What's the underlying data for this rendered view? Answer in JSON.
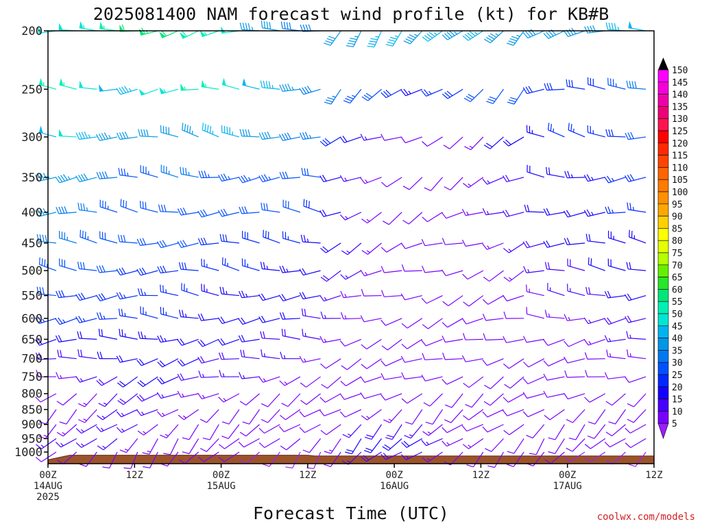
{
  "chart_data": {
    "type": "wind-barb",
    "title": "2025081400 NAM forecast wind profile (kt) for KB#B",
    "xlabel": "Forecast Time (UTC)",
    "ylabel": "",
    "y_ticks": [
      "200",
      "250",
      "300",
      "350",
      "400",
      "450",
      "500",
      "550",
      "600",
      "650",
      "700",
      "750",
      "800",
      "850",
      "900",
      "950",
      "1000"
    ],
    "x_ticks": [
      {
        "lines": [
          "00Z",
          "14AUG",
          "2025"
        ],
        "hour": 0
      },
      {
        "lines": [
          "12Z"
        ],
        "hour": 12
      },
      {
        "lines": [
          "00Z",
          "15AUG"
        ],
        "hour": 24
      },
      {
        "lines": [
          "12Z"
        ],
        "hour": 36
      },
      {
        "lines": [
          "00Z",
          "16AUG"
        ],
        "hour": 48
      },
      {
        "lines": [
          "12Z"
        ],
        "hour": 60
      },
      {
        "lines": [
          "00Z",
          "17AUG"
        ],
        "hour": 72
      },
      {
        "lines": [
          "12Z"
        ],
        "hour": 84
      }
    ],
    "xlim_hours": [
      0,
      84
    ],
    "ylim_hpa": [
      200,
      1040
    ],
    "y_scale": "log-pressure",
    "surface_pressure_hpa": [
      [
        0,
        1030
      ],
      [
        3,
        1012
      ],
      [
        36,
        1012
      ],
      [
        37,
        1015
      ],
      [
        84,
        1015
      ]
    ],
    "colorbar": {
      "ticks": [
        150,
        145,
        140,
        135,
        130,
        125,
        120,
        115,
        110,
        105,
        100,
        95,
        90,
        85,
        80,
        75,
        70,
        65,
        60,
        55,
        50,
        45,
        40,
        35,
        30,
        25,
        20,
        15,
        10,
        5
      ],
      "colors": [
        "#ff00ff",
        "#f500d8",
        "#ee00a8",
        "#ee0078",
        "#ff1450",
        "#ff0000",
        "#ff2a00",
        "#ff4500",
        "#ff6400",
        "#ff7a00",
        "#ff9000",
        "#ffa800",
        "#ffd000",
        "#ffff00",
        "#e6ff00",
        "#b4ff00",
        "#64f000",
        "#28e628",
        "#00e678",
        "#00f0b4",
        "#00e6d2",
        "#00b4f0",
        "#0096e6",
        "#0078f0",
        "#0050ff",
        "#0028ff",
        "#1400ff",
        "#4600ff",
        "#7800ff",
        "#9a1eff"
      ]
    },
    "barbs": [
      {
        "p": 200,
        "dir": 262,
        "spd": [
          52,
          52,
          54,
          56,
          60,
          64,
          60,
          58,
          56,
          52,
          44,
          40,
          38,
          38,
          40,
          44,
          46,
          46,
          44,
          46,
          44,
          46,
          44,
          44,
          42,
          40,
          40,
          40,
          45,
          48
        ]
      },
      {
        "p": 250,
        "dir": 268,
        "spd": [
          55,
          56,
          52,
          48,
          46,
          50,
          54,
          56,
          56,
          52,
          48,
          46,
          44,
          38,
          36,
          34,
          32,
          28,
          24,
          26,
          28,
          30,
          30,
          30,
          28,
          28,
          28,
          28,
          33,
          38
        ]
      },
      {
        "p": 300,
        "dir": 276,
        "spd": [
          48,
          50,
          46,
          44,
          40,
          40,
          42,
          44,
          46,
          46,
          42,
          40,
          38,
          35,
          28,
          20,
          15,
          12,
          10,
          10,
          12,
          14,
          20,
          22,
          24,
          26,
          26,
          26,
          28,
          30
        ]
      },
      {
        "p": 350,
        "dir": 270,
        "spd": [
          44,
          44,
          40,
          38,
          34,
          34,
          36,
          36,
          34,
          34,
          34,
          34,
          32,
          30,
          22,
          16,
          14,
          12,
          12,
          12,
          12,
          14,
          16,
          18,
          20,
          22,
          24,
          24,
          26,
          28
        ]
      },
      {
        "p": 400,
        "dir": 272,
        "spd": [
          40,
          38,
          36,
          34,
          32,
          32,
          32,
          30,
          30,
          30,
          30,
          30,
          30,
          28,
          22,
          16,
          14,
          12,
          12,
          12,
          12,
          14,
          16,
          18,
          20,
          22,
          22,
          24,
          26,
          26
        ]
      },
      {
        "p": 450,
        "dir": 272,
        "spd": [
          38,
          36,
          34,
          32,
          30,
          30,
          30,
          30,
          28,
          28,
          28,
          28,
          26,
          24,
          20,
          16,
          14,
          12,
          12,
          10,
          10,
          12,
          14,
          16,
          18,
          20,
          20,
          22,
          24,
          24
        ]
      },
      {
        "p": 500,
        "dir": 272,
        "spd": [
          34,
          32,
          30,
          30,
          28,
          28,
          28,
          28,
          26,
          26,
          26,
          24,
          24,
          22,
          18,
          15,
          14,
          12,
          12,
          10,
          10,
          10,
          12,
          14,
          16,
          18,
          18,
          20,
          22,
          22
        ]
      },
      {
        "p": 550,
        "dir": 270,
        "spd": [
          30,
          28,
          28,
          28,
          26,
          26,
          26,
          26,
          24,
          24,
          24,
          22,
          22,
          20,
          16,
          14,
          12,
          12,
          10,
          10,
          10,
          10,
          10,
          12,
          14,
          16,
          16,
          18,
          20,
          20
        ]
      },
      {
        "p": 600,
        "dir": 268,
        "spd": [
          26,
          26,
          26,
          26,
          26,
          26,
          26,
          24,
          22,
          22,
          22,
          20,
          20,
          18,
          16,
          14,
          12,
          10,
          10,
          10,
          10,
          10,
          10,
          10,
          12,
          14,
          14,
          16,
          18,
          18
        ]
      },
      {
        "p": 650,
        "dir": 264,
        "spd": [
          22,
          22,
          22,
          22,
          24,
          24,
          24,
          22,
          20,
          20,
          20,
          18,
          18,
          16,
          14,
          12,
          12,
          10,
          10,
          10,
          10,
          10,
          10,
          10,
          10,
          12,
          12,
          14,
          16,
          16
        ]
      },
      {
        "p": 700,
        "dir": 260,
        "spd": [
          18,
          18,
          18,
          20,
          22,
          22,
          22,
          20,
          18,
          18,
          18,
          16,
          16,
          14,
          12,
          12,
          10,
          10,
          10,
          10,
          10,
          10,
          10,
          10,
          10,
          10,
          10,
          12,
          14,
          14
        ]
      },
      {
        "p": 750,
        "dir": 252,
        "spd": [
          14,
          14,
          16,
          18,
          20,
          20,
          20,
          18,
          16,
          16,
          16,
          14,
          14,
          12,
          12,
          10,
          10,
          10,
          10,
          10,
          10,
          10,
          10,
          10,
          10,
          10,
          10,
          10,
          12,
          12
        ]
      },
      {
        "p": 800,
        "dir": 240,
        "spd": [
          12,
          12,
          14,
          16,
          18,
          18,
          16,
          14,
          14,
          14,
          12,
          12,
          12,
          10,
          10,
          10,
          10,
          10,
          10,
          10,
          10,
          10,
          10,
          10,
          10,
          10,
          10,
          10,
          10,
          10
        ]
      },
      {
        "p": 850,
        "dir": 232,
        "spd": [
          12,
          12,
          14,
          16,
          16,
          16,
          14,
          14,
          12,
          12,
          12,
          10,
          10,
          10,
          10,
          12,
          14,
          14,
          12,
          12,
          10,
          10,
          10,
          10,
          10,
          10,
          10,
          10,
          10,
          10
        ]
      },
      {
        "p": 900,
        "dir": 228,
        "spd": [
          14,
          14,
          16,
          16,
          16,
          14,
          14,
          12,
          12,
          12,
          10,
          10,
          10,
          10,
          12,
          16,
          18,
          18,
          16,
          14,
          12,
          12,
          10,
          10,
          10,
          10,
          10,
          10,
          10,
          10
        ]
      },
      {
        "p": 950,
        "dir": 224,
        "spd": [
          16,
          16,
          16,
          16,
          14,
          14,
          12,
          12,
          12,
          10,
          10,
          10,
          10,
          10,
          14,
          20,
          22,
          22,
          20,
          16,
          14,
          14,
          12,
          12,
          10,
          10,
          10,
          10,
          10,
          10
        ]
      },
      {
        "p": 1000,
        "dir": 220,
        "spd": [
          12,
          12,
          12,
          10,
          10,
          10,
          10,
          10,
          10,
          10,
          8,
          8,
          8,
          8,
          10,
          16,
          18,
          18,
          16,
          14,
          12,
          12,
          10,
          10,
          10,
          10,
          8,
          8,
          8,
          8
        ]
      }
    ],
    "credit": "coolwx.com/models"
  }
}
